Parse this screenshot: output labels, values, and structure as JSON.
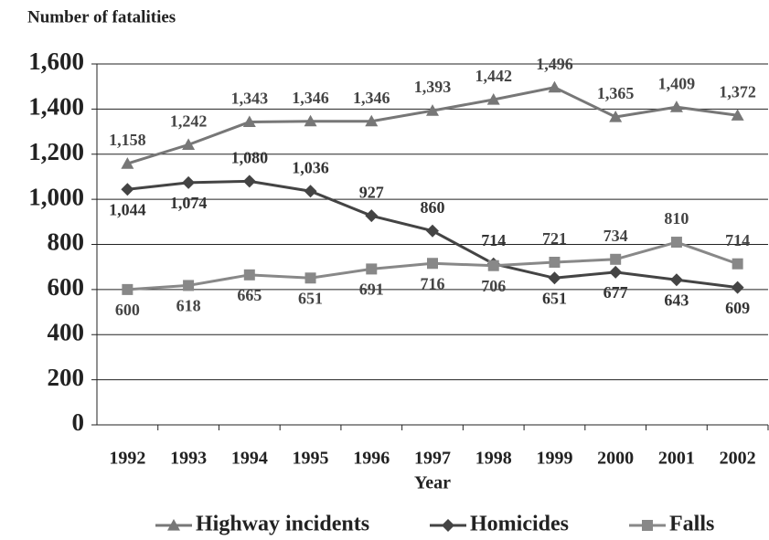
{
  "chart_data": {
    "type": "line",
    "title": "Number of fatalities",
    "x_label": "Year",
    "categories": [
      "1992",
      "1993",
      "1994",
      "1995",
      "1996",
      "1997",
      "1998",
      "1999",
      "2000",
      "2001",
      "2002"
    ],
    "series": [
      {
        "name": "Highway incidents",
        "color": "#777777",
        "marker": "triangle",
        "values": [
          1158,
          1242,
          1343,
          1346,
          1346,
          1393,
          1442,
          1496,
          1365,
          1409,
          1372
        ],
        "value_labels": [
          "1,158",
          "1,242",
          "1,343",
          "1,346",
          "1,346",
          "1,393",
          "1,442",
          "1,496",
          "1,365",
          "1,409",
          "1,372"
        ]
      },
      {
        "name": "Homicides",
        "color": "#444444",
        "marker": "diamond",
        "values": [
          1044,
          1074,
          1080,
          1036,
          927,
          860,
          714,
          651,
          677,
          643,
          609
        ],
        "value_labels": [
          "1,044",
          "1,074",
          "1,080",
          "1,036",
          "927",
          "860",
          "714",
          "651",
          "677",
          "643",
          "609"
        ]
      },
      {
        "name": "Falls",
        "color": "#888888",
        "marker": "square",
        "values": [
          600,
          618,
          665,
          651,
          691,
          716,
          706,
          721,
          734,
          810,
          714
        ]
      }
    ],
    "ylim": [
      0,
      1600
    ],
    "yticks": [
      0,
      200,
      400,
      600,
      800,
      {
        "value": 1000,
        "label": "1,000"
      },
      {
        "value": 1200,
        "label": "1,200"
      },
      {
        "value": 1400,
        "label": "1,400"
      },
      {
        "value": 1600,
        "label": "1,600"
      }
    ],
    "grid": true,
    "legend": "bottom"
  }
}
